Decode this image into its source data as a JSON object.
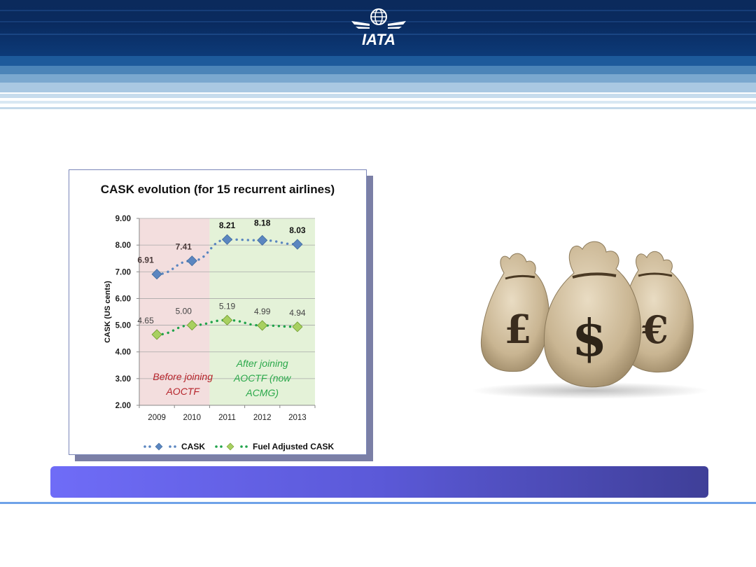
{
  "header": {
    "logo_text": "IATA"
  },
  "chart_data": {
    "type": "line",
    "title": "CASK evolution (for 15 recurrent airlines)",
    "ylabel": "CASK (US cents)",
    "xlabel": "",
    "categories": [
      "2009",
      "2010",
      "2011",
      "2012",
      "2013"
    ],
    "ylim": [
      2.0,
      9.0
    ],
    "yticks": [
      "2.00",
      "3.00",
      "4.00",
      "5.00",
      "6.00",
      "7.00",
      "8.00",
      "9.00"
    ],
    "grid": true,
    "legend_position": "bottom",
    "series": [
      {
        "name": "CASK",
        "values": [
          6.91,
          7.41,
          8.21,
          8.18,
          8.03
        ],
        "labels": [
          "6.91",
          "7.41",
          "8.21",
          "8.18",
          "8.03"
        ],
        "color": "#5b86c0",
        "marker_color": "#5b86c0"
      },
      {
        "name": "Fuel Adjusted CASK",
        "values": [
          4.65,
          5.0,
          5.19,
          4.99,
          4.94
        ],
        "labels": [
          "4.65",
          "5.00",
          "5.19",
          "4.99",
          "4.94"
        ],
        "color": "#1fa34a",
        "marker_color": "#a8d060"
      }
    ],
    "regions": [
      {
        "label_lines": [
          "Before joining",
          "AOCTF"
        ],
        "from": 0,
        "to": 2,
        "color": "#f3dede",
        "text_color": "#b5232a"
      },
      {
        "label_lines": [
          "After joining",
          "AOCTF (now",
          "ACMG)"
        ],
        "from": 2,
        "to": 5,
        "color": "#e4f2d8",
        "text_color": "#2aa84a"
      }
    ]
  },
  "image": {
    "description_icons": [
      "pound-icon",
      "dollar-icon",
      "euro-icon"
    ],
    "symbols": [
      "£",
      "$",
      "€"
    ]
  }
}
